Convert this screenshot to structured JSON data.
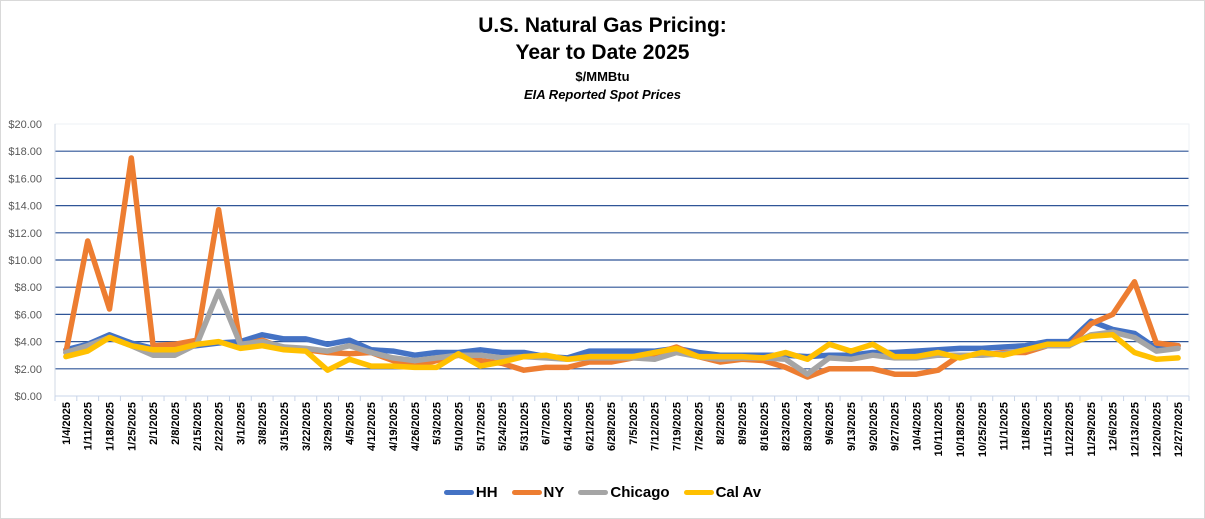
{
  "chart_data": {
    "type": "line",
    "title": "U.S. Natural Gas Pricing:",
    "title_line2": "Year to Date 2025",
    "subtitle": "$/MMBtu",
    "subtitle2": "EIA Reported Spot Prices",
    "xlabel": "",
    "ylabel": "",
    "ylim": [
      0,
      20
    ],
    "y_ticks": [
      "$0.00",
      "$2.00",
      "$4.00",
      "$6.00",
      "$8.00",
      "$10.00",
      "$12.00",
      "$14.00",
      "$16.00",
      "$18.00",
      "$20.00"
    ],
    "y_tick_values": [
      0,
      2,
      4,
      6,
      8,
      10,
      12,
      14,
      16,
      18,
      20
    ],
    "grid": true,
    "legend_position": "bottom",
    "x": [
      "1/4/2025",
      "1/11/2025",
      "1/18/2025",
      "1/25/2025",
      "2/1/2025",
      "2/8/2025",
      "2/15/2025",
      "2/22/2025",
      "3/1/2025",
      "3/8/2025",
      "3/15/2025",
      "3/22/2025",
      "3/29/2025",
      "4/5/2025",
      "4/12/2025",
      "4/19/2025",
      "4/26/2025",
      "5/3/2025",
      "5/10/2025",
      "5/17/2025",
      "5/24/2025",
      "5/31/2025",
      "6/7/2025",
      "6/14/2025",
      "6/21/2025",
      "6/28/2025",
      "7/5/2025",
      "7/12/2025",
      "7/19/2025",
      "7/26/2025",
      "8/2/2025",
      "8/9/2025",
      "8/16/2025",
      "8/23/2025",
      "8/30/2024",
      "9/6/2025",
      "9/13/2025",
      "9/20/2025",
      "9/27/2025",
      "10/4/2025",
      "10/11/2025",
      "10/18/2025",
      "10/25/2025",
      "11/1/2025",
      "11/8/2025",
      "11/15/2025",
      "11/22/2025",
      "11/29/2025",
      "12/6/2025",
      "12/13/2025",
      "12/20/2025",
      "12/27/2025"
    ],
    "series": [
      {
        "name": "HH",
        "color": "#4472c4",
        "values": [
          3.4,
          3.8,
          4.5,
          3.9,
          3.5,
          3.5,
          3.7,
          3.9,
          4.0,
          4.5,
          4.2,
          4.2,
          3.8,
          4.1,
          3.4,
          3.3,
          3.0,
          3.2,
          3.2,
          3.4,
          3.2,
          3.2,
          2.9,
          2.8,
          3.3,
          3.3,
          3.3,
          3.3,
          3.5,
          3.2,
          3.0,
          3.0,
          3.0,
          3.0,
          2.9,
          3.0,
          3.0,
          3.2,
          3.2,
          3.3,
          3.4,
          3.5,
          3.5,
          3.6,
          3.7,
          4.0,
          4.0,
          5.5,
          4.9,
          4.6,
          3.5,
          3.7
        ]
      },
      {
        "name": "NY",
        "color": "#ed7d31",
        "values": [
          3.2,
          11.4,
          6.4,
          17.5,
          3.7,
          3.8,
          4.1,
          13.7,
          3.7,
          4.1,
          3.5,
          3.4,
          3.2,
          3.1,
          3.2,
          2.6,
          2.2,
          2.6,
          3.0,
          2.6,
          2.4,
          1.9,
          2.1,
          2.1,
          2.5,
          2.5,
          2.8,
          3.1,
          3.6,
          2.9,
          2.5,
          2.7,
          2.6,
          2.1,
          1.4,
          2.0,
          2.0,
          2.0,
          1.6,
          1.6,
          1.9,
          3.0,
          3.0,
          3.2,
          3.2,
          3.7,
          3.7,
          5.3,
          6.0,
          8.4,
          3.9,
          3.7
        ]
      },
      {
        "name": "Chicago",
        "color": "#a5a5a5",
        "values": [
          3.2,
          3.7,
          4.3,
          3.7,
          3.0,
          3.0,
          3.8,
          7.7,
          3.8,
          4.0,
          3.6,
          3.5,
          3.3,
          3.7,
          3.2,
          2.8,
          2.6,
          2.8,
          3.0,
          3.0,
          2.8,
          2.9,
          2.8,
          2.7,
          2.8,
          2.8,
          2.8,
          2.7,
          3.2,
          2.9,
          2.7,
          2.8,
          2.8,
          2.7,
          1.6,
          2.8,
          2.7,
          3.0,
          2.8,
          2.8,
          3.0,
          3.0,
          3.0,
          3.1,
          3.4,
          3.7,
          3.7,
          4.5,
          4.7,
          4.3,
          3.3,
          3.5
        ]
      },
      {
        "name": "Cal Av",
        "color": "#ffc000",
        "values": [
          2.9,
          3.3,
          4.3,
          3.7,
          3.4,
          3.4,
          3.8,
          4.0,
          3.5,
          3.7,
          3.4,
          3.3,
          1.9,
          2.7,
          2.2,
          2.2,
          2.1,
          2.1,
          3.1,
          2.2,
          2.5,
          2.9,
          3.0,
          2.7,
          2.9,
          2.9,
          2.9,
          3.2,
          3.5,
          2.9,
          2.9,
          2.9,
          2.8,
          3.2,
          2.7,
          3.8,
          3.3,
          3.8,
          2.9,
          2.9,
          3.2,
          2.8,
          3.2,
          3.0,
          3.4,
          3.8,
          3.8,
          4.4,
          4.5,
          3.2,
          2.7,
          2.8
        ]
      }
    ]
  }
}
